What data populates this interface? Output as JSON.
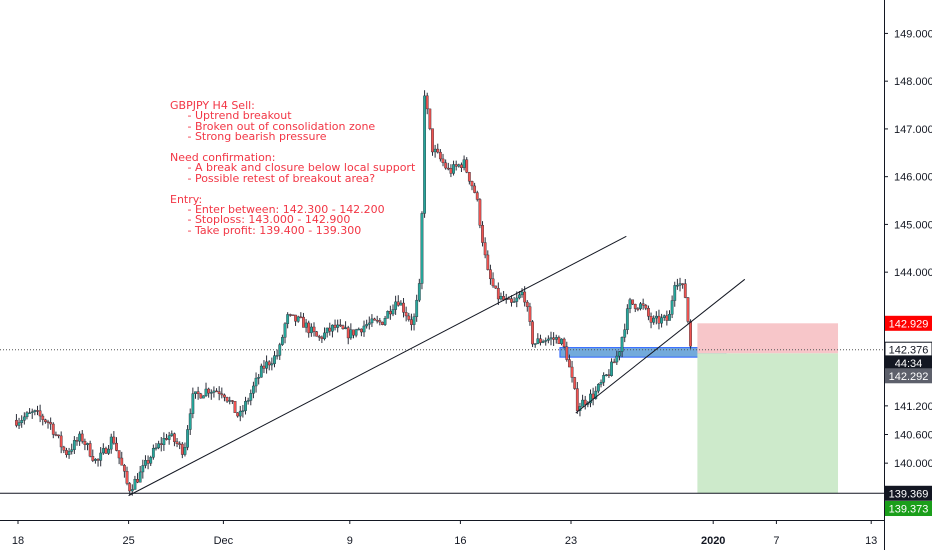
{
  "chart_data": {
    "type": "candlestick",
    "title": "",
    "symbol": "GBPJPY",
    "timeframe": "H4",
    "xlabel": "",
    "ylabel": "",
    "ylim": [
      138.6,
      149.7
    ],
    "price_ticks": [
      "149.000",
      "148.000",
      "147.000",
      "146.000",
      "145.000",
      "144.000",
      "141.200",
      "140.600",
      "140.000"
    ],
    "date_ticks": [
      {
        "label": "18",
        "day": 0
      },
      {
        "label": "25",
        "day": 7
      },
      {
        "label": "Dec",
        "day": 13
      },
      {
        "label": "9",
        "day": 21
      },
      {
        "label": "16",
        "day": 28
      },
      {
        "label": "23",
        "day": 35
      },
      {
        "label": "2020",
        "day": 44,
        "bold": true
      },
      {
        "label": "7",
        "day": 48
      },
      {
        "label": "13",
        "day": 54
      }
    ],
    "price_labels": [
      {
        "text": "142.929",
        "price": 142.929,
        "style": "red"
      },
      {
        "text": "142.376",
        "price": 142.376,
        "style": "outline"
      },
      {
        "text": "44:34",
        "price": 142.1,
        "style": "dark"
      },
      {
        "text": "142.292",
        "price": 141.83,
        "style": "gray"
      },
      {
        "text": "139.369",
        "price": 139.369,
        "style": "dark"
      },
      {
        "text": "139.373",
        "price": 139.05,
        "style": "green"
      }
    ],
    "current_price": 142.376,
    "last_day": 42.6,
    "candles_per_day": 6,
    "close_path": [
      [
        0,
        140.9
      ],
      [
        1,
        141.05
      ],
      [
        2,
        140.85
      ],
      [
        3,
        140.2
      ],
      [
        4,
        140.55
      ],
      [
        5,
        140.0
      ],
      [
        6,
        140.55
      ],
      [
        7,
        139.45
      ],
      [
        7.6,
        139.7
      ],
      [
        8.5,
        140.2
      ],
      [
        9.5,
        140.6
      ],
      [
        10.5,
        140.25
      ],
      [
        11,
        141.35
      ],
      [
        12,
        141.55
      ],
      [
        13,
        141.5
      ],
      [
        14,
        140.95
      ],
      [
        15.5,
        142.0
      ],
      [
        16.5,
        142.3
      ],
      [
        17,
        143.05
      ],
      [
        18,
        142.95
      ],
      [
        19,
        142.6
      ],
      [
        20,
        142.85
      ],
      [
        21,
        142.7
      ],
      [
        22,
        142.9
      ],
      [
        23,
        142.95
      ],
      [
        24,
        143.45
      ],
      [
        25,
        142.9
      ],
      [
        25.5,
        143.85
      ],
      [
        25.7,
        147.85
      ],
      [
        26.2,
        146.6
      ],
      [
        27.3,
        146.1
      ],
      [
        28.2,
        146.3
      ],
      [
        29,
        145.6
      ],
      [
        29.7,
        144.0
      ],
      [
        30.3,
        143.5
      ],
      [
        31.3,
        143.3
      ],
      [
        32,
        143.6
      ],
      [
        32.6,
        142.5
      ],
      [
        33.3,
        142.6
      ],
      [
        34.3,
        142.6
      ],
      [
        34.7,
        142.3
      ],
      [
        35.4,
        141.2
      ],
      [
        36.5,
        141.45
      ],
      [
        37.4,
        141.9
      ],
      [
        38,
        142.3
      ],
      [
        38.7,
        143.35
      ],
      [
        39.5,
        143.3
      ],
      [
        40.1,
        142.95
      ],
      [
        40.7,
        143.0
      ],
      [
        41.2,
        143.0
      ],
      [
        41.6,
        143.9
      ],
      [
        42.2,
        143.6
      ],
      [
        42.6,
        142.376
      ]
    ],
    "trendlines": [
      {
        "name": "rising-support-1",
        "from": [
          7,
          139.32
        ],
        "to": [
          38.5,
          144.75
        ]
      },
      {
        "name": "rising-support-2",
        "from": [
          35.3,
          141.05
        ],
        "to": [
          46,
          143.85
        ]
      }
    ],
    "zones": [
      {
        "name": "support-zone",
        "day_from": 34.3,
        "day_to": 44.8,
        "price_from": 142.22,
        "price_to": 142.42,
        "color": "#5b9bd5"
      },
      {
        "name": "stop-zone",
        "day_from": 43.0,
        "day_to": 51.9,
        "price_from": 142.3,
        "price_to": 142.929,
        "color": "#f7c6c9"
      },
      {
        "name": "target-zone",
        "day_from": 43.0,
        "day_to": 51.9,
        "price_from": 139.369,
        "price_to": 142.3,
        "color": "#cdeacb"
      }
    ],
    "horizontal_lines": [
      {
        "name": "target-line",
        "price": 139.369,
        "style": "solid"
      },
      {
        "name": "price-line",
        "price": 142.376,
        "style": "dotted"
      }
    ],
    "annotation": {
      "lines": [
        "GBPJPY H4 Sell:",
        "     - Uptrend breakout",
        "     - Broken out of consolidation zone",
        "     - Strong bearish pressure",
        "",
        "Need confirmation:",
        "     - A break and closure below local support",
        "     - Possible retest of breakout area?",
        "",
        "Entry:",
        "     - Enter between: 142.300 - 142.200",
        "     - Stoploss: 143.000 - 142.900",
        "     - Take profit: 139.400 - 139.300"
      ]
    },
    "colors": {
      "up": "#26a69a",
      "down": "#ef5350",
      "text": "#f23645",
      "axis": "#131722",
      "red_label": "#ff0000",
      "green_label": "#1a9e1a"
    },
    "grid": false
  }
}
